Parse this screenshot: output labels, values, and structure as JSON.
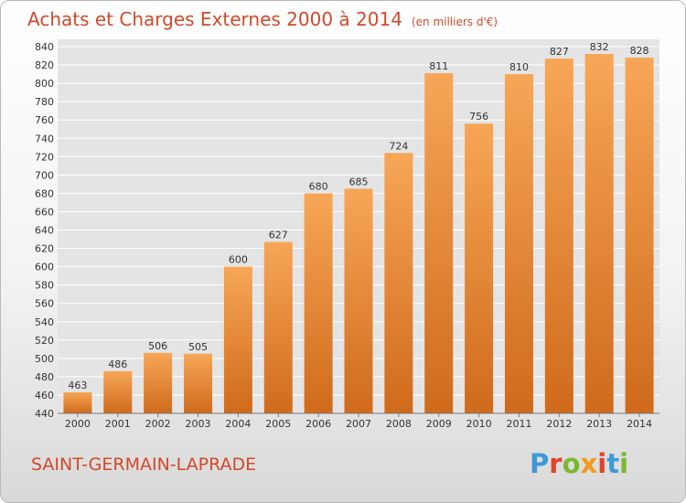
{
  "header": {
    "title": "Achats et Charges Externes 2000 à 2014",
    "subtitle": "(en milliers d'€)"
  },
  "footer": {
    "commune": "SAINT-GERMAIN-LAPRADE",
    "logo_text": "Proxiti"
  },
  "colors": {
    "title": "#d2492a",
    "bar_light": "#f7a657",
    "bar_dark": "#d06a1b",
    "plot_bg": "#e4e4e4",
    "grid": "#ffffff",
    "logo": [
      "#3e9ad6",
      "#e0432a",
      "#7cb82f",
      "#f29a1b",
      "#e0432a",
      "#3e9ad6",
      "#7cb82f"
    ]
  },
  "chart_data": {
    "type": "bar",
    "categories": [
      "2000",
      "2001",
      "2002",
      "2003",
      "2004",
      "2005",
      "2006",
      "2007",
      "2008",
      "2009",
      "2010",
      "2011",
      "2012",
      "2013",
      "2014"
    ],
    "values": [
      463,
      486,
      506,
      505,
      600,
      627,
      680,
      685,
      724,
      811,
      756,
      810,
      827,
      832,
      828
    ],
    "data_labels": [
      "463",
      "486",
      "506",
      "505",
      "600",
      "627",
      "680",
      "685",
      "724",
      "811",
      "756",
      "810",
      "827",
      "832",
      "828"
    ],
    "title": "Achats et Charges Externes 2000 à 2014",
    "unit": "(en milliers d'€)",
    "ylim": [
      440,
      840
    ],
    "yticks": [
      440,
      460,
      480,
      500,
      520,
      540,
      560,
      580,
      600,
      620,
      640,
      660,
      680,
      700,
      720,
      740,
      760,
      780,
      800,
      820,
      840
    ],
    "ytick_labels": [
      "440",
      "460",
      "480",
      "500",
      "520",
      "540",
      "560",
      "580",
      "600",
      "620",
      "640",
      "660",
      "680",
      "700",
      "720",
      "740",
      "760",
      "780",
      "800",
      "820",
      "840"
    ],
    "grid": true,
    "legend": "none"
  }
}
